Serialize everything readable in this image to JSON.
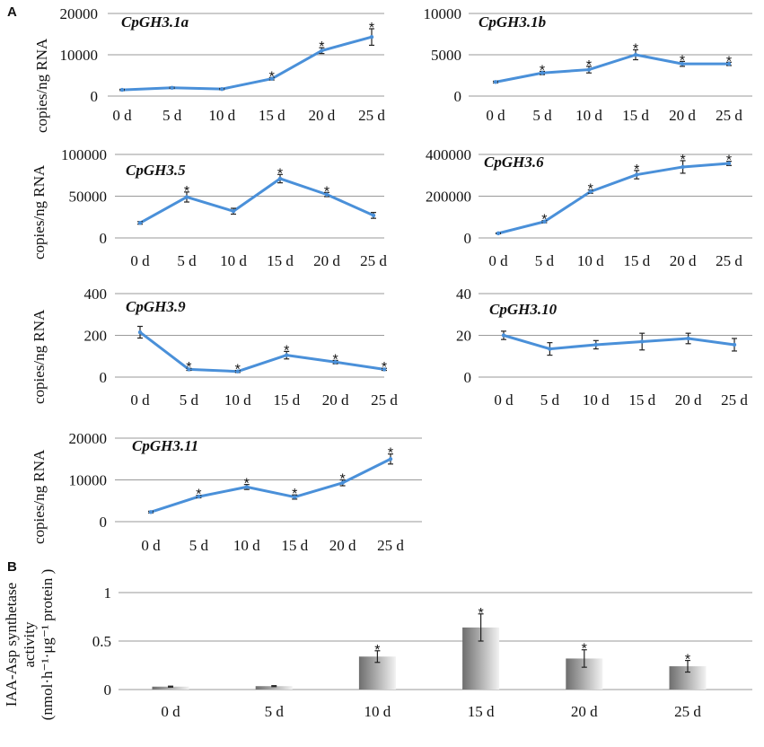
{
  "panel_a_label": "A",
  "panel_b_label": "B",
  "y_label_a": "copies/ng RNA",
  "y_label_a_top": "copies/ng  RNA",
  "y_label_b_line1": "IAA-Asp synthetase",
  "y_label_b_line2": "activity",
  "y_label_b_line3": "(nmol·h⁻¹·μg⁻¹  protein )",
  "colors": {
    "line": "#4a90d9",
    "grid": "#9a9a9a",
    "bar_dark": "#6e6e6e",
    "bar_light": "#f2f2f2"
  },
  "chart_data": [
    {
      "type": "line",
      "title": "CpGH3.1a",
      "categories": [
        "0 d",
        "5 d",
        "10 d",
        "15 d",
        "20 d",
        "25 d"
      ],
      "values": [
        1500,
        2000,
        1700,
        4200,
        11000,
        14300
      ],
      "errors": [
        150,
        150,
        150,
        300,
        700,
        2000
      ],
      "significant": [
        false,
        false,
        false,
        true,
        true,
        true
      ],
      "ylim": [
        0,
        20000
      ],
      "yticks": [
        "0",
        "10000",
        "20000"
      ],
      "ylabel": "copies/ng  RNA"
    },
    {
      "type": "line",
      "title": "CpGH3.1b",
      "categories": [
        "0 d",
        "5 d",
        "10 d",
        "15 d",
        "20 d",
        "25 d"
      ],
      "values": [
        1700,
        2800,
        3200,
        5000,
        3900,
        3900
      ],
      "errors": [
        100,
        200,
        400,
        600,
        300,
        200
      ],
      "significant": [
        false,
        true,
        true,
        true,
        true,
        true
      ],
      "ylim": [
        0,
        10000
      ],
      "yticks": [
        "0",
        "5000",
        "10000"
      ],
      "ylabel": ""
    },
    {
      "type": "line",
      "title": "CpGH3.5",
      "categories": [
        "0 d",
        "5 d",
        "10 d",
        "15 d",
        "20 d",
        "25 d"
      ],
      "values": [
        18000,
        49000,
        32000,
        71000,
        52000,
        27000
      ],
      "errors": [
        1500,
        6000,
        3500,
        5000,
        2500,
        3500
      ],
      "significant": [
        false,
        true,
        false,
        true,
        true,
        false
      ],
      "ylim": [
        0,
        100000
      ],
      "yticks": [
        "0",
        "50000",
        "100000"
      ],
      "ylabel": "copies/ng RNA"
    },
    {
      "type": "line",
      "title": "CpGH3.6",
      "categories": [
        "0 d",
        "5 d",
        "10 d",
        "15 d",
        "20 d",
        "25 d"
      ],
      "values": [
        22000,
        78000,
        222000,
        303000,
        340000,
        357000
      ],
      "errors": [
        2000,
        5000,
        8000,
        20000,
        30000,
        10000
      ],
      "significant": [
        false,
        true,
        true,
        true,
        true,
        true
      ],
      "ylim": [
        0,
        400000
      ],
      "yticks": [
        "0",
        "200000",
        "400000"
      ],
      "ylabel": ""
    },
    {
      "type": "line",
      "title": "CpGH3.9",
      "categories": [
        "0 d",
        "5 d",
        "10 d",
        "15 d",
        "20 d",
        "25 d"
      ],
      "values": [
        215,
        37,
        27,
        105,
        72,
        37
      ],
      "errors": [
        28,
        5,
        5,
        18,
        8,
        5
      ],
      "significant": [
        false,
        true,
        true,
        true,
        true,
        true
      ],
      "ylim": [
        0,
        400
      ],
      "yticks": [
        "0",
        "200",
        "400"
      ],
      "ylabel": "copies/ng RNA"
    },
    {
      "type": "line",
      "title": "CpGH3.10",
      "categories": [
        "0 d",
        "5 d",
        "10 d",
        "15 d",
        "20 d",
        "25 d"
      ],
      "values": [
        20,
        13.5,
        15.5,
        17,
        18.5,
        15.5
      ],
      "errors": [
        2,
        3,
        2,
        4,
        2.5,
        3
      ],
      "significant": [
        false,
        false,
        false,
        false,
        false,
        false
      ],
      "ylim": [
        0,
        40
      ],
      "yticks": [
        "0",
        "20",
        "40"
      ],
      "ylabel": ""
    },
    {
      "type": "line",
      "title": "CpGH3.11",
      "categories": [
        "0 d",
        "5 d",
        "10 d",
        "15 d",
        "20 d",
        "25 d"
      ],
      "values": [
        2300,
        6000,
        8300,
        5900,
        9300,
        15000
      ],
      "errors": [
        200,
        300,
        600,
        500,
        700,
        1200
      ],
      "significant": [
        false,
        true,
        true,
        true,
        true,
        true
      ],
      "ylim": [
        0,
        20000
      ],
      "yticks": [
        "0",
        "10000",
        "20000"
      ],
      "ylabel": "copies/ng RNA"
    },
    {
      "type": "bar",
      "title": "",
      "categories": [
        "0 d",
        "5 d",
        "10 d",
        "15 d",
        "20 d",
        "25 d"
      ],
      "values": [
        0.03,
        0.035,
        0.34,
        0.64,
        0.32,
        0.24
      ],
      "errors": [
        0.005,
        0.005,
        0.06,
        0.14,
        0.09,
        0.06
      ],
      "significant": [
        false,
        false,
        true,
        true,
        true,
        true
      ],
      "ylim": [
        0,
        1
      ],
      "yticks": [
        "0",
        "0.5",
        "1"
      ],
      "ylabel": "IAA-Asp synthetase activity (nmol·h⁻¹·μg⁻¹ protein)"
    }
  ]
}
